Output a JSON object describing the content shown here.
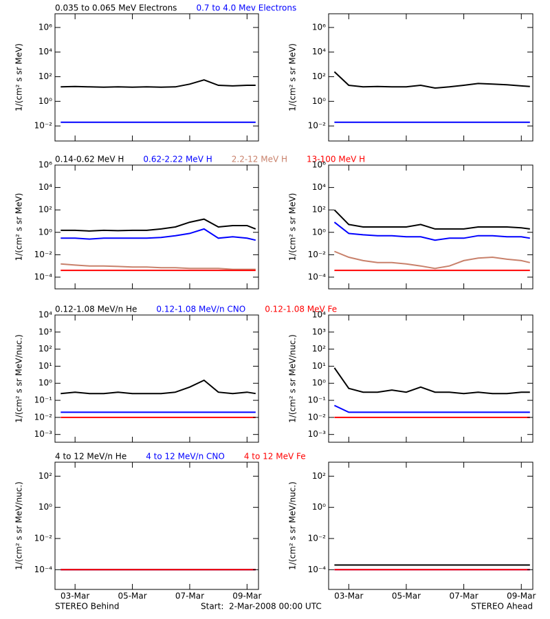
{
  "chart_data": [
    {
      "type": "line",
      "log_scale": true,
      "ylabel": "1/(cm² s sr MeV)",
      "x": [
        2.5,
        3,
        3.5,
        4,
        4.5,
        5,
        5.5,
        6,
        6.5,
        7,
        7.5,
        8,
        8.5,
        9,
        9.3
      ],
      "xlim": [
        2.3,
        9.4
      ],
      "xticks": [
        {
          "value": 3,
          "label": "03-Mar"
        },
        {
          "value": 5,
          "label": "05-Mar"
        },
        {
          "value": 7,
          "label": "07-Mar"
        },
        {
          "value": 9,
          "label": "09-Mar"
        }
      ],
      "ylim": [
        0.0006,
        13000000
      ],
      "yticks": [
        {
          "value": 0.01,
          "label": "10⁻²"
        },
        {
          "value": 1,
          "label": "10⁰"
        },
        {
          "value": 100,
          "label": "10²"
        },
        {
          "value": 10000,
          "label": "10⁴"
        },
        {
          "value": 1000000,
          "label": "10⁶"
        }
      ],
      "series": [
        {
          "name": "0.035 to 0.065 MeV Electrons",
          "color": "#000000",
          "values": [
            15,
            16,
            15,
            14,
            15,
            14,
            15,
            14,
            15,
            25,
            55,
            20,
            18,
            20,
            20
          ]
        },
        {
          "name": "0.7 to 4.0 Mev Electrons",
          "color": "#0000ff",
          "values": [
            0.02,
            0.02,
            0.02,
            0.02,
            0.02,
            0.02,
            0.02,
            0.02,
            0.02,
            0.02,
            0.02,
            0.02,
            0.02,
            0.02,
            0.02
          ]
        }
      ]
    },
    {
      "type": "line",
      "log_scale": true,
      "ylabel": "1/(cm² s sr MeV)",
      "x": [
        2.5,
        3,
        3.5,
        4,
        4.5,
        5,
        5.5,
        6,
        6.5,
        7,
        7.5,
        8,
        8.5,
        9,
        9.3
      ],
      "xlim": [
        2.3,
        9.4
      ],
      "xticks": [
        {
          "value": 3,
          "label": "03-Mar"
        },
        {
          "value": 5,
          "label": "05-Mar"
        },
        {
          "value": 7,
          "label": "07-Mar"
        },
        {
          "value": 9,
          "label": "09-Mar"
        }
      ],
      "ylim": [
        0.0006,
        13000000
      ],
      "yticks": [
        {
          "value": 0.01,
          "label": "10⁻²"
        },
        {
          "value": 1,
          "label": "10⁰"
        },
        {
          "value": 100,
          "label": "10²"
        },
        {
          "value": 10000,
          "label": "10⁴"
        },
        {
          "value": 1000000,
          "label": "10⁶"
        }
      ],
      "series": [
        {
          "color": "#000000",
          "values": [
            250,
            20,
            15,
            16,
            15,
            15,
            20,
            12,
            15,
            20,
            28,
            25,
            22,
            18,
            16
          ]
        },
        {
          "color": "#0000ff",
          "values": [
            0.02,
            0.02,
            0.02,
            0.02,
            0.02,
            0.02,
            0.02,
            0.02,
            0.02,
            0.02,
            0.02,
            0.02,
            0.02,
            0.02,
            0.02
          ]
        }
      ]
    },
    {
      "type": "line",
      "log_scale": true,
      "ylabel": "1/(cm² s sr MeV)",
      "x": [
        2.5,
        3,
        3.5,
        4,
        4.5,
        5,
        5.5,
        6,
        6.5,
        7,
        7.5,
        8,
        8.5,
        9,
        9.3
      ],
      "xlim": [
        2.3,
        9.4
      ],
      "xticks": [
        {
          "value": 3,
          "label": "03-Mar"
        },
        {
          "value": 5,
          "label": "05-Mar"
        },
        {
          "value": 7,
          "label": "07-Mar"
        },
        {
          "value": 9,
          "label": "09-Mar"
        }
      ],
      "ylim": [
        9e-06,
        1000000
      ],
      "yticks": [
        {
          "value": 0.0001,
          "label": "10⁻⁴"
        },
        {
          "value": 0.01,
          "label": "10⁻²"
        },
        {
          "value": 1,
          "label": "10⁰"
        },
        {
          "value": 100,
          "label": "10²"
        },
        {
          "value": 10000,
          "label": "10⁴"
        },
        {
          "value": 1000000,
          "label": "10⁶"
        }
      ],
      "series": [
        {
          "name": "0.14-0.62 MeV H",
          "color": "#000000",
          "values": [
            1.5,
            1.5,
            1.3,
            1.5,
            1.4,
            1.5,
            1.5,
            2,
            3,
            8,
            15,
            3,
            4,
            4,
            2
          ]
        },
        {
          "name": "0.62-2.22 MeV H",
          "color": "#0000ff",
          "values": [
            0.3,
            0.3,
            0.25,
            0.3,
            0.3,
            0.3,
            0.3,
            0.35,
            0.5,
            0.8,
            2,
            0.3,
            0.4,
            0.3,
            0.2
          ]
        },
        {
          "name": "2.2-12 MeV H",
          "color": "#c8806a",
          "values": [
            0.0015,
            0.0012,
            0.001,
            0.001,
            0.0009,
            0.0008,
            0.0008,
            0.0007,
            0.0007,
            0.0006,
            0.0006,
            0.0006,
            0.0005,
            0.0005,
            0.0005
          ]
        },
        {
          "name": "13-100 MeV H",
          "color": "#ff0000",
          "values": [
            0.0004,
            0.0004,
            0.0004,
            0.0004,
            0.0004,
            0.0004,
            0.0004,
            0.0004,
            0.0004,
            0.0004,
            0.0004,
            0.0004,
            0.0004,
            0.0004,
            0.0004
          ]
        }
      ]
    },
    {
      "type": "line",
      "log_scale": true,
      "ylabel": "1/(cm² s sr MeV)",
      "x": [
        2.5,
        3,
        3.5,
        4,
        4.5,
        5,
        5.5,
        6,
        6.5,
        7,
        7.5,
        8,
        8.5,
        9,
        9.3
      ],
      "xlim": [
        2.3,
        9.4
      ],
      "xticks": [
        {
          "value": 3,
          "label": "03-Mar"
        },
        {
          "value": 5,
          "label": "05-Mar"
        },
        {
          "value": 7,
          "label": "07-Mar"
        },
        {
          "value": 9,
          "label": "09-Mar"
        }
      ],
      "ylim": [
        9e-06,
        1000000
      ],
      "yticks": [
        {
          "value": 0.0001,
          "label": "10⁻⁴"
        },
        {
          "value": 0.01,
          "label": "10⁻²"
        },
        {
          "value": 1,
          "label": "10⁰"
        },
        {
          "value": 100,
          "label": "10²"
        },
        {
          "value": 10000,
          "label": "10⁴"
        },
        {
          "value": 1000000,
          "label": "10⁶"
        }
      ],
      "series": [
        {
          "color": "#000000",
          "values": [
            100,
            5,
            3,
            3,
            3,
            3,
            5,
            2,
            2,
            2,
            3,
            3,
            3,
            2.5,
            2
          ]
        },
        {
          "color": "#0000ff",
          "values": [
            8,
            0.8,
            0.6,
            0.5,
            0.5,
            0.4,
            0.4,
            0.2,
            0.3,
            0.3,
            0.5,
            0.5,
            0.4,
            0.4,
            0.3
          ]
        },
        {
          "color": "#c8806a",
          "values": [
            0.02,
            0.006,
            0.003,
            0.002,
            0.002,
            0.0015,
            0.001,
            0.0006,
            0.001,
            0.003,
            0.005,
            0.006,
            0.004,
            0.003,
            0.002
          ]
        },
        {
          "color": "#ff0000",
          "values": [
            0.0004,
            0.0004,
            0.0004,
            0.0004,
            0.0004,
            0.0004,
            0.0004,
            0.0004,
            0.0004,
            0.0004,
            0.0004,
            0.0004,
            0.0004,
            0.0004,
            0.0004
          ]
        }
      ]
    },
    {
      "type": "line",
      "log_scale": true,
      "ylabel": "1/(cm² s sr MeV/nuc.)",
      "x": [
        2.5,
        3,
        3.5,
        4,
        4.5,
        5,
        5.5,
        6,
        6.5,
        7,
        7.5,
        8,
        8.5,
        9,
        9.3
      ],
      "xlim": [
        2.3,
        9.4
      ],
      "xticks": [
        {
          "value": 3,
          "label": "03-Mar"
        },
        {
          "value": 5,
          "label": "05-Mar"
        },
        {
          "value": 7,
          "label": "07-Mar"
        },
        {
          "value": 9,
          "label": "09-Mar"
        }
      ],
      "ylim": [
        0.00035,
        10000
      ],
      "yticks": [
        {
          "value": 0.001,
          "label": "10⁻³"
        },
        {
          "value": 0.01,
          "label": "10⁻²"
        },
        {
          "value": 0.1,
          "label": "10⁻¹"
        },
        {
          "value": 1,
          "label": "10⁰"
        },
        {
          "value": 10,
          "label": "10¹"
        },
        {
          "value": 100,
          "label": "10²"
        },
        {
          "value": 1000,
          "label": "10³"
        },
        {
          "value": 10000,
          "label": "10⁴"
        }
      ],
      "series": [
        {
          "name": "0.12-1.08 MeV/n He",
          "color": "#000000",
          "values": [
            0.25,
            0.3,
            0.25,
            0.25,
            0.3,
            0.25,
            0.25,
            0.25,
            0.3,
            0.6,
            1.5,
            0.3,
            0.25,
            0.3,
            0.25
          ]
        },
        {
          "name": "0.12-1.08 MeV/n CNO",
          "color": "#0000ff",
          "values": [
            0.02,
            0.02,
            0.02,
            0.02,
            0.02,
            0.02,
            0.02,
            0.02,
            0.02,
            0.02,
            0.02,
            0.02,
            0.02,
            0.02,
            0.02
          ]
        },
        {
          "name": "0.12-1.08 MeV Fe",
          "color": "#ff0000",
          "values": [
            0.01,
            0.01,
            0.01,
            0.01,
            0.01,
            0.01,
            0.01,
            0.01,
            0.01,
            0.01,
            0.01,
            0.01,
            0.01,
            0.01,
            0.01
          ]
        }
      ]
    },
    {
      "type": "line",
      "log_scale": true,
      "ylabel": "1/(cm² s sr MeV/nuc.)",
      "x": [
        2.5,
        3,
        3.5,
        4,
        4.5,
        5,
        5.5,
        6,
        6.5,
        7,
        7.5,
        8,
        8.5,
        9,
        9.3
      ],
      "xlim": [
        2.3,
        9.4
      ],
      "xticks": [
        {
          "value": 3,
          "label": "03-Mar"
        },
        {
          "value": 5,
          "label": "05-Mar"
        },
        {
          "value": 7,
          "label": "07-Mar"
        },
        {
          "value": 9,
          "label": "09-Mar"
        }
      ],
      "ylim": [
        0.00035,
        10000
      ],
      "yticks": [
        {
          "value": 0.001,
          "label": "10⁻³"
        },
        {
          "value": 0.01,
          "label": "10⁻²"
        },
        {
          "value": 0.1,
          "label": "10⁻¹"
        },
        {
          "value": 1,
          "label": "10⁰"
        },
        {
          "value": 10,
          "label": "10¹"
        },
        {
          "value": 100,
          "label": "10²"
        },
        {
          "value": 1000,
          "label": "10³"
        },
        {
          "value": 10000,
          "label": "10⁴"
        }
      ],
      "series": [
        {
          "color": "#000000",
          "values": [
            8,
            0.5,
            0.3,
            0.3,
            0.4,
            0.3,
            0.6,
            0.3,
            0.3,
            0.25,
            0.3,
            0.25,
            0.25,
            0.3,
            0.3
          ]
        },
        {
          "color": "#0000ff",
          "values": [
            0.05,
            0.02,
            0.02,
            0.02,
            0.02,
            0.02,
            0.02,
            0.02,
            0.02,
            0.02,
            0.02,
            0.02,
            0.02,
            0.02,
            0.02
          ]
        },
        {
          "color": "#ff0000",
          "values": [
            0.01,
            0.01,
            0.01,
            0.01,
            0.01,
            0.01,
            0.01,
            0.01,
            0.01,
            0.01,
            0.01,
            0.01,
            0.01,
            0.01,
            0.01
          ]
        }
      ]
    },
    {
      "type": "line",
      "log_scale": true,
      "ylabel": "1/(cm² s sr MeV/nuc.)",
      "x": [
        2.5,
        3,
        3.5,
        4,
        4.5,
        5,
        5.5,
        6,
        6.5,
        7,
        7.5,
        8,
        8.5,
        9,
        9.3
      ],
      "xlim": [
        2.3,
        9.4
      ],
      "xticks": [
        {
          "value": 3,
          "label": "03-Mar"
        },
        {
          "value": 5,
          "label": "05-Mar"
        },
        {
          "value": 7,
          "label": "07-Mar"
        },
        {
          "value": 9,
          "label": "09-Mar"
        }
      ],
      "ylim": [
        5.4e-06,
        790
      ],
      "yticks": [
        {
          "value": 0.0001,
          "label": "10⁻⁴"
        },
        {
          "value": 0.01,
          "label": "10⁻²"
        },
        {
          "value": 1,
          "label": "10⁰"
        },
        {
          "value": 100,
          "label": "10²"
        }
      ],
      "series": [
        {
          "name": "4 to 12 MeV/n He",
          "color": "#000000",
          "values": [
            0.0001,
            0.0001,
            0.0001,
            0.0001,
            0.0001,
            0.0001,
            0.0001,
            0.0001,
            0.0001,
            0.0001,
            0.0001,
            0.0001,
            0.0001,
            0.0001,
            0.0001
          ]
        },
        {
          "name": "4 to 12 MeV/n CNO",
          "color": "#0000ff",
          "values": [
            0.0001,
            0.0001,
            0.0001,
            0.0001,
            0.0001,
            0.0001,
            0.0001,
            0.0001,
            0.0001,
            0.0001,
            0.0001,
            0.0001,
            0.0001,
            0.0001,
            0.0001
          ]
        },
        {
          "name": "4 to 12 MeV Fe",
          "color": "#ff0000",
          "values": [
            0.0001,
            0.0001,
            0.0001,
            0.0001,
            0.0001,
            0.0001,
            0.0001,
            0.0001,
            0.0001,
            0.0001,
            0.0001,
            0.0001,
            0.0001,
            0.0001,
            0.0001
          ]
        }
      ]
    },
    {
      "type": "line",
      "log_scale": true,
      "ylabel": "1/(cm² s sr MeV/nuc.)",
      "x": [
        2.5,
        3,
        3.5,
        4,
        4.5,
        5,
        5.5,
        6,
        6.5,
        7,
        7.5,
        8,
        8.5,
        9,
        9.3
      ],
      "xlim": [
        2.3,
        9.4
      ],
      "xticks": [
        {
          "value": 3,
          "label": "03-Mar"
        },
        {
          "value": 5,
          "label": "05-Mar"
        },
        {
          "value": 7,
          "label": "07-Mar"
        },
        {
          "value": 9,
          "label": "09-Mar"
        }
      ],
      "ylim": [
        5.4e-06,
        790
      ],
      "yticks": [
        {
          "value": 0.0001,
          "label": "10⁻⁴"
        },
        {
          "value": 0.01,
          "label": "10⁻²"
        },
        {
          "value": 1,
          "label": "10⁰"
        },
        {
          "value": 100,
          "label": "10²"
        }
      ],
      "series": [
        {
          "color": "#000000",
          "values": [
            0.0002,
            0.0002,
            0.0002,
            0.0002,
            0.0002,
            0.0002,
            0.0002,
            0.0002,
            0.0002,
            0.0002,
            0.0002,
            0.0002,
            0.0002,
            0.0002,
            0.0002
          ]
        },
        {
          "color": "#0000ff",
          "values": [
            0.0001,
            0.0001,
            0.0001,
            0.0001,
            0.0001,
            0.0001,
            0.0001,
            0.0001,
            0.0001,
            0.0001,
            0.0001,
            0.0001,
            0.0001,
            0.0001,
            0.0001
          ]
        },
        {
          "color": "#ff0000",
          "values": [
            0.0001,
            0.0001,
            0.0001,
            0.0001,
            0.0001,
            0.0001,
            0.0001,
            0.0001,
            0.0001,
            0.0001,
            0.0001,
            0.0001,
            0.0001,
            0.0001,
            0.0001
          ]
        }
      ]
    }
  ],
  "footer": {
    "left": "STEREO Behind",
    "center": "Start:  2-Mar-2008 00:00 UTC",
    "right": "STEREO Ahead"
  }
}
